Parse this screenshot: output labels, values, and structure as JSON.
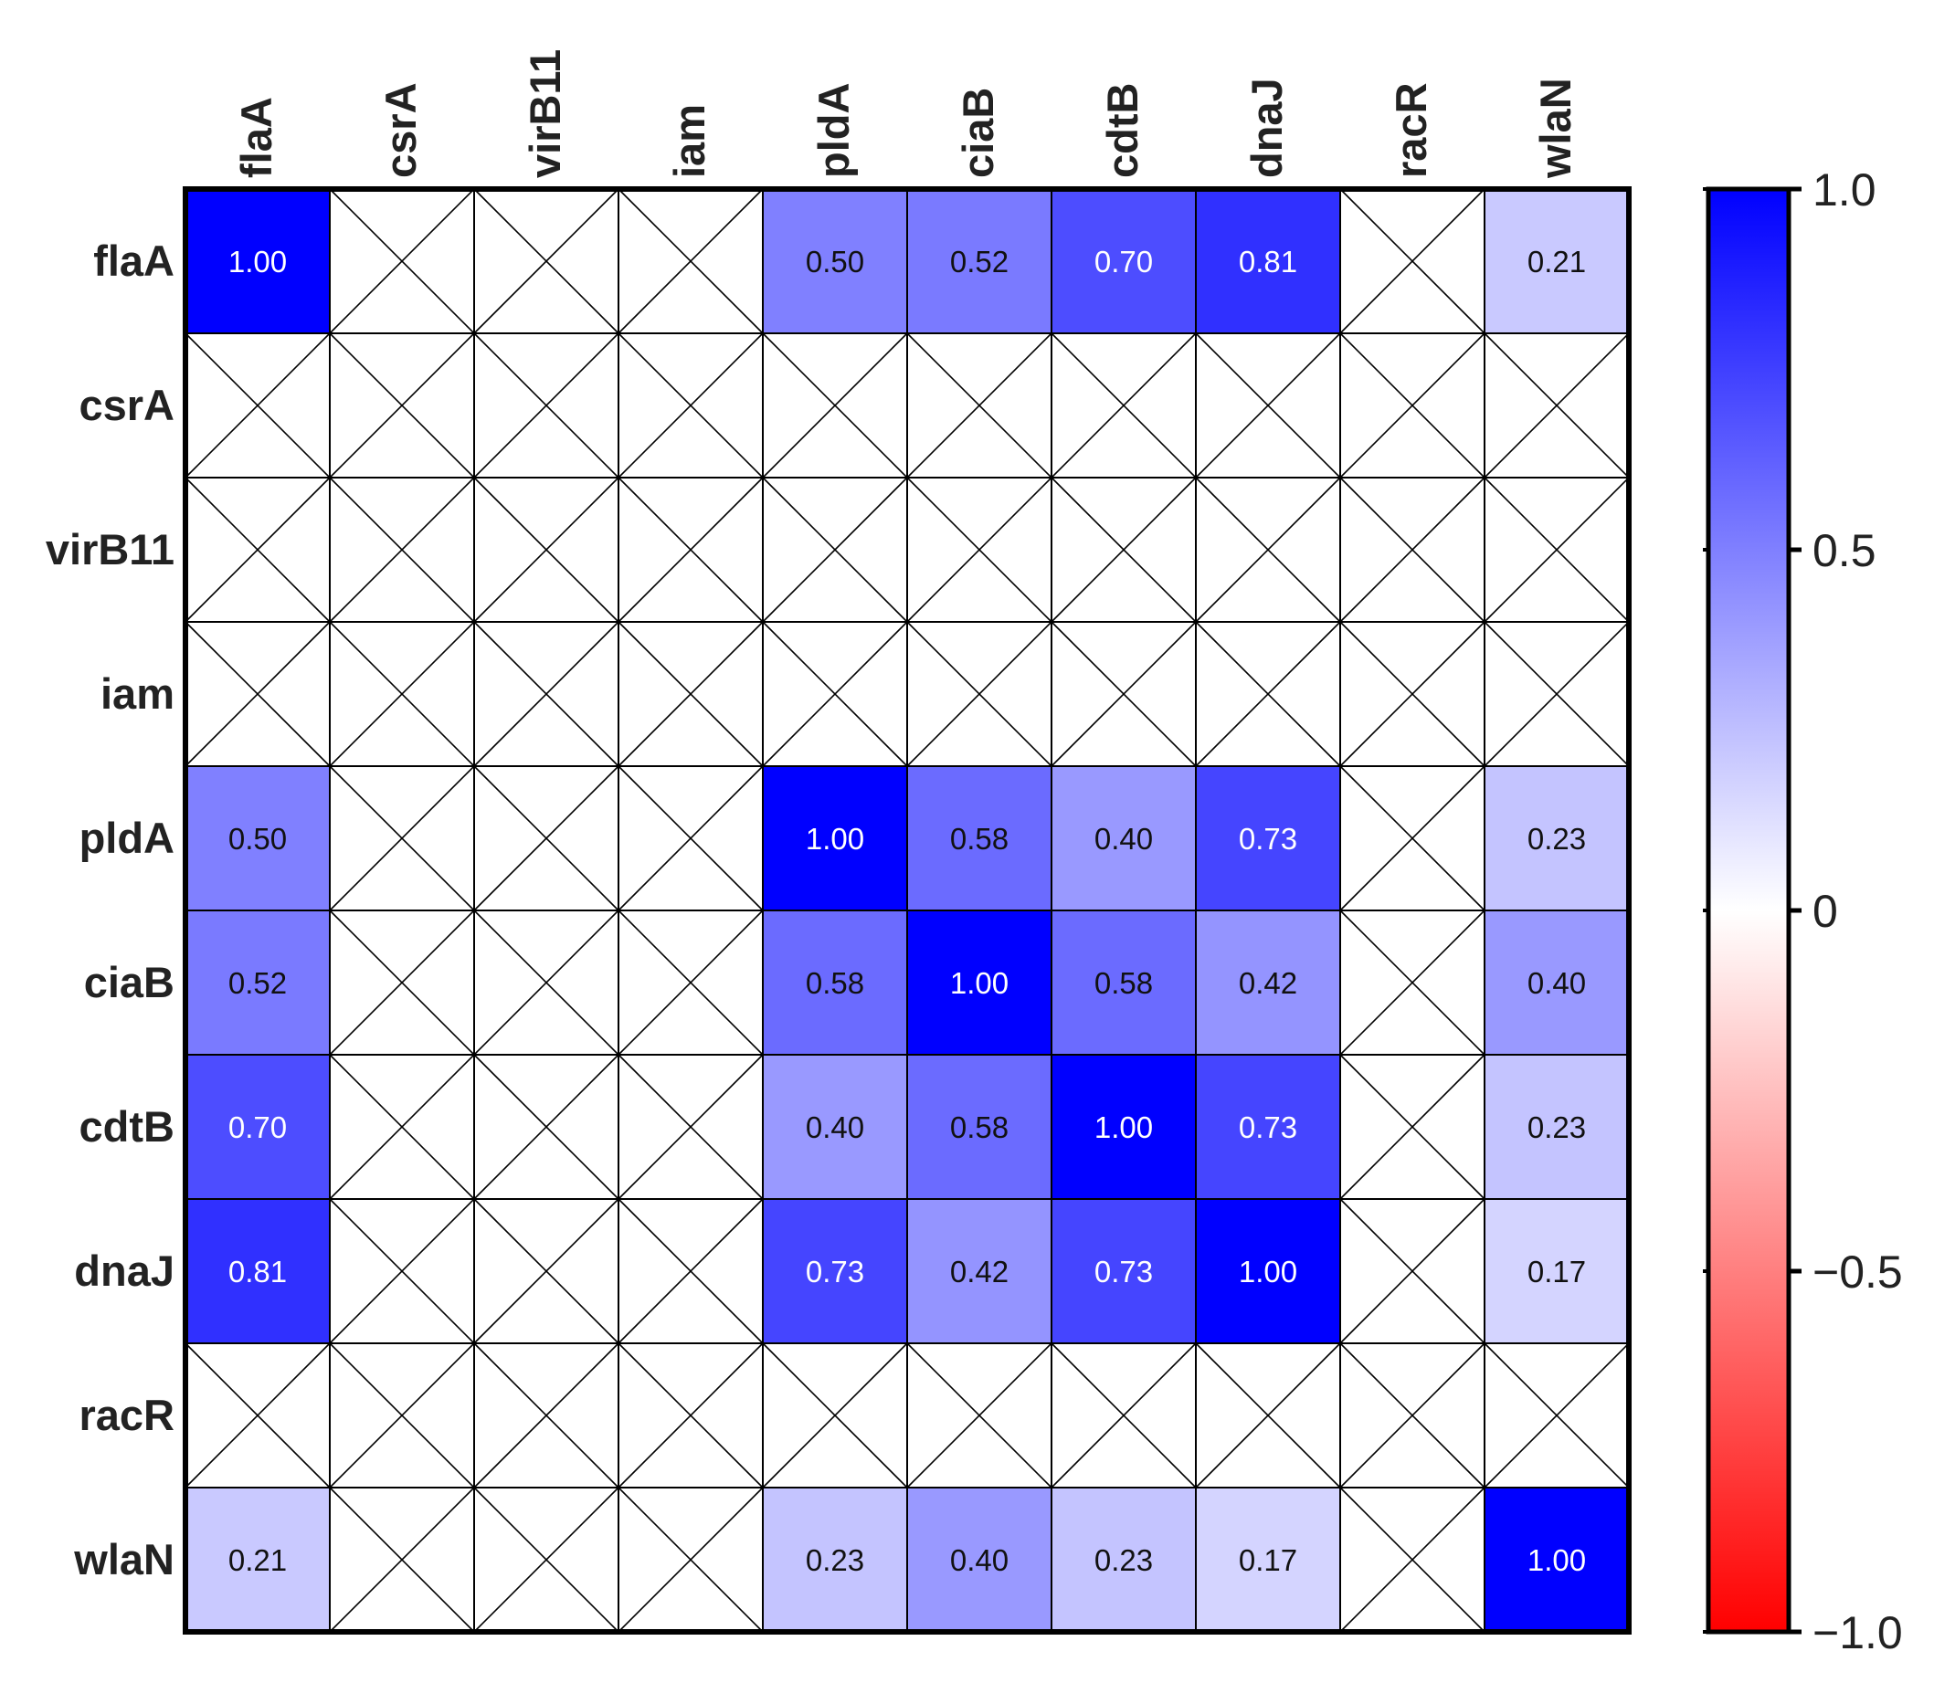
{
  "chart_data": {
    "type": "heatmap",
    "title": "",
    "rows": [
      "flaA",
      "csrA",
      "virB11",
      "iam",
      "pldA",
      "ciaB",
      "cdtB",
      "dnaJ",
      "racR",
      "wlaN"
    ],
    "columns": [
      "flaA",
      "csrA",
      "virB11",
      "iam",
      "pldA",
      "ciaB",
      "cdtB",
      "dnaJ",
      "racR",
      "wlaN"
    ],
    "values": [
      [
        1.0,
        null,
        null,
        null,
        0.5,
        0.52,
        0.7,
        0.81,
        null,
        0.21
      ],
      [
        null,
        null,
        null,
        null,
        null,
        null,
        null,
        null,
        null,
        null
      ],
      [
        null,
        null,
        null,
        null,
        null,
        null,
        null,
        null,
        null,
        null
      ],
      [
        null,
        null,
        null,
        null,
        null,
        null,
        null,
        null,
        null,
        null
      ],
      [
        0.5,
        null,
        null,
        null,
        1.0,
        0.58,
        0.4,
        0.73,
        null,
        0.23
      ],
      [
        0.52,
        null,
        null,
        null,
        0.58,
        1.0,
        0.58,
        0.42,
        null,
        0.4
      ],
      [
        0.7,
        null,
        null,
        null,
        0.4,
        0.58,
        1.0,
        0.73,
        null,
        0.23
      ],
      [
        0.81,
        null,
        null,
        null,
        0.73,
        0.42,
        0.73,
        1.0,
        null,
        0.17
      ],
      [
        null,
        null,
        null,
        null,
        null,
        null,
        null,
        null,
        null,
        null
      ],
      [
        0.21,
        null,
        null,
        null,
        0.23,
        0.4,
        0.23,
        0.17,
        null,
        1.0
      ]
    ],
    "missing_marker": "X",
    "colorbar": {
      "range": [
        -1.0,
        1.0
      ],
      "ticks": [
        1.0,
        0.5,
        0,
        -0.5,
        -1.0
      ],
      "tick_labels": [
        "1.0",
        "0.5",
        "0",
        "−0.5",
        "−1.0"
      ],
      "colors": {
        "low": "#ff0000",
        "mid": "#ffffff",
        "high": "#0000ff"
      }
    },
    "legend_position": "right"
  }
}
